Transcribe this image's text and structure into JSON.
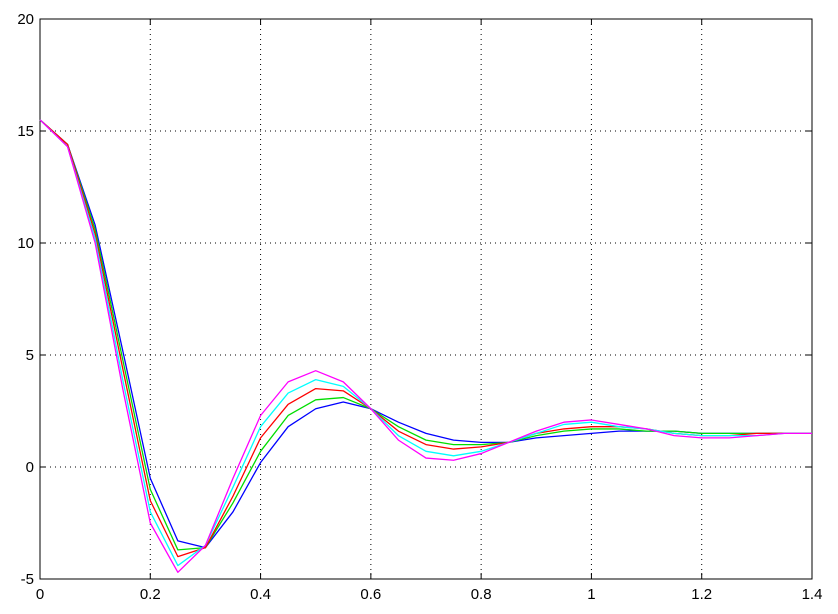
{
  "chart_data": {
    "type": "line",
    "x": [
      0,
      0.05,
      0.1,
      0.15,
      0.2,
      0.25,
      0.3,
      0.35,
      0.4,
      0.45,
      0.5,
      0.55,
      0.6,
      0.65,
      0.7,
      0.75,
      0.8,
      0.85,
      0.9,
      0.95,
      1.0,
      1.05,
      1.1,
      1.15,
      1.2,
      1.25,
      1.3,
      1.35,
      1.4
    ],
    "series": [
      {
        "color": "#0000ff",
        "values": [
          15.5,
          14.4,
          10.8,
          5.2,
          -0.5,
          -3.3,
          -3.6,
          -2.0,
          0.2,
          1.8,
          2.6,
          2.9,
          2.6,
          2.0,
          1.5,
          1.2,
          1.1,
          1.1,
          1.3,
          1.4,
          1.5,
          1.6,
          1.6,
          1.6,
          1.5,
          1.5,
          1.5,
          1.5,
          1.5
        ]
      },
      {
        "color": "#00dd00",
        "values": [
          15.5,
          14.4,
          10.6,
          4.8,
          -1.0,
          -3.7,
          -3.6,
          -1.6,
          0.7,
          2.3,
          3.0,
          3.1,
          2.6,
          1.8,
          1.2,
          1.0,
          1.0,
          1.1,
          1.4,
          1.6,
          1.7,
          1.7,
          1.6,
          1.6,
          1.5,
          1.5,
          1.5,
          1.5,
          1.5
        ]
      },
      {
        "color": "#ff0000",
        "values": [
          15.5,
          14.4,
          10.4,
          4.4,
          -1.5,
          -4.0,
          -3.6,
          -1.3,
          1.3,
          2.8,
          3.5,
          3.4,
          2.6,
          1.6,
          1.0,
          0.8,
          0.9,
          1.1,
          1.5,
          1.7,
          1.8,
          1.8,
          1.7,
          1.5,
          1.4,
          1.4,
          1.5,
          1.5,
          1.5
        ]
      },
      {
        "color": "#00ffff",
        "values": [
          15.5,
          14.3,
          10.2,
          3.9,
          -2.0,
          -4.4,
          -3.5,
          -0.9,
          1.8,
          3.3,
          3.9,
          3.6,
          2.6,
          1.4,
          0.7,
          0.5,
          0.7,
          1.1,
          1.5,
          1.9,
          2.0,
          1.8,
          1.7,
          1.5,
          1.4,
          1.4,
          1.4,
          1.5,
          1.5
        ]
      },
      {
        "color": "#ff00ff",
        "values": [
          15.5,
          14.3,
          10.0,
          3.5,
          -2.5,
          -4.7,
          -3.5,
          -0.5,
          2.3,
          3.8,
          4.3,
          3.8,
          2.6,
          1.2,
          0.4,
          0.3,
          0.6,
          1.1,
          1.6,
          2.0,
          2.1,
          1.9,
          1.7,
          1.4,
          1.3,
          1.3,
          1.4,
          1.5,
          1.5
        ]
      }
    ],
    "xlim": [
      0,
      1.4
    ],
    "ylim": [
      -5,
      20
    ],
    "xticks": [
      0,
      0.2,
      0.4,
      0.6,
      0.8,
      1,
      1.2,
      1.4
    ],
    "yticks": [
      -5,
      0,
      5,
      10,
      15,
      20
    ],
    "grid": true
  }
}
